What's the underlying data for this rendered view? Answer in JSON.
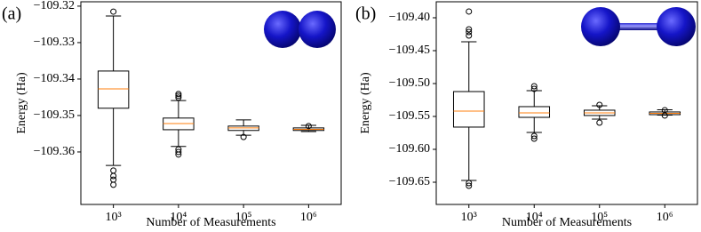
{
  "chart_data": [
    {
      "type": "box",
      "panel_label": "(a)",
      "ylabel": "Energy (Ha)",
      "xlabel": "Number of Measurements",
      "categories": [
        "10³",
        "10⁴",
        "10⁵",
        "10⁶"
      ],
      "box_color": "#000000",
      "median_color": "#ff7f0e",
      "boxes": [
        {
          "whislo": -109.3637,
          "q1": -109.348,
          "median": -109.3427,
          "q3": -109.3378,
          "whishi": -109.3227,
          "fliers": [
            -109.3215,
            -109.3651,
            -109.3666,
            -109.3676,
            -109.369
          ]
        },
        {
          "whislo": -109.3585,
          "q1": -109.3539,
          "median": -109.3522,
          "q3": -109.3507,
          "whishi": -109.3459,
          "fliers": [
            -109.3441,
            -109.3446,
            -109.3451,
            -109.3593,
            -109.36,
            -109.3607
          ]
        },
        {
          "whislo": -109.3554,
          "q1": -109.3541,
          "median": -109.3534,
          "q3": -109.3529,
          "whishi": -109.3512,
          "fliers": [
            -109.3559
          ]
        },
        {
          "whislo": -109.3544,
          "q1": -109.3541,
          "median": -109.3538,
          "q3": -109.3534,
          "whishi": -109.3527,
          "fliers": [
            -109.3529
          ]
        }
      ],
      "ylim": [
        -109.3744,
        -109.3188
      ],
      "yticks": [
        {
          "value": -109.32,
          "label": "−109.32"
        },
        {
          "value": -109.33,
          "label": "−109.33"
        },
        {
          "value": -109.34,
          "label": "−109.34"
        },
        {
          "value": -109.35,
          "label": "−109.35"
        },
        {
          "value": -109.36,
          "label": "−109.36"
        }
      ]
    },
    {
      "type": "box",
      "panel_label": "(b)",
      "ylabel": "Energy (Ha)",
      "xlabel": "Number of Measurements",
      "categories": [
        "10³",
        "10⁴",
        "10⁵",
        "10⁶"
      ],
      "box_color": "#000000",
      "median_color": "#ff7f0e",
      "boxes": [
        {
          "whislo": -109.6473,
          "q1": -109.5662,
          "median": -109.5419,
          "q3": -109.5122,
          "whishi": -109.4365,
          "fliers": [
            -109.3905,
            -109.4176,
            -109.4216,
            -109.427,
            -109.6514,
            -109.6554
          ]
        },
        {
          "whislo": -109.5743,
          "q1": -109.5514,
          "median": -109.5446,
          "q3": -109.5351,
          "whishi": -109.5108,
          "fliers": [
            -109.5041,
            -109.5081,
            -109.5797,
            -109.5838
          ]
        },
        {
          "whislo": -109.5541,
          "q1": -109.5486,
          "median": -109.5446,
          "q3": -109.5405,
          "whishi": -109.5338,
          "fliers": [
            -109.5324,
            -109.5595
          ]
        },
        {
          "whislo": -109.548,
          "q1": -109.5473,
          "median": -109.5453,
          "q3": -109.5432,
          "whishi": -109.5399,
          "fliers": [
            -109.5405,
            -109.5486
          ]
        }
      ],
      "ylim": [
        -109.6838,
        -109.3757
      ],
      "yticks": [
        {
          "value": -109.4,
          "label": "−109.40"
        },
        {
          "value": -109.45,
          "label": "−109.45"
        },
        {
          "value": -109.5,
          "label": "−109.50"
        },
        {
          "value": -109.55,
          "label": "−109.55"
        },
        {
          "value": -109.6,
          "label": "−109.60"
        },
        {
          "value": -109.65,
          "label": "−109.65"
        }
      ]
    }
  ]
}
